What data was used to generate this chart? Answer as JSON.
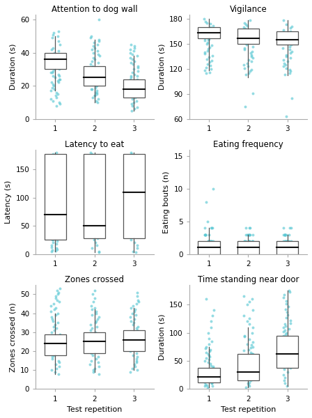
{
  "panels": [
    {
      "title": "Attention to dog wall",
      "ylabel": "Duration (s)",
      "ylim": [
        0,
        63
      ],
      "yticks": [
        0,
        20,
        40,
        60
      ],
      "boxes": [
        {
          "median": 36,
          "q1": 30,
          "q3": 40,
          "whislo": 17,
          "whishi": 50
        },
        {
          "median": 25,
          "q1": 20,
          "q3": 32,
          "whislo": 10,
          "whishi": 48
        },
        {
          "median": 18,
          "q1": 13,
          "q3": 24,
          "whislo": 5,
          "whishi": 38
        }
      ],
      "jitter_y": [
        [
          36,
          38,
          40,
          35,
          33,
          37,
          39,
          41,
          34,
          32,
          30,
          29,
          28,
          42,
          43,
          45,
          47,
          49,
          27,
          26,
          25,
          24,
          22,
          20,
          19,
          18,
          17,
          21,
          23,
          38,
          36,
          34,
          32,
          30,
          28,
          26,
          24,
          22,
          10,
          8,
          15,
          16,
          13,
          12,
          11,
          14,
          50,
          51,
          52,
          53,
          9
        ],
        [
          25,
          27,
          29,
          23,
          21,
          30,
          32,
          34,
          20,
          18,
          16,
          40,
          42,
          45,
          48,
          35,
          33,
          31,
          15,
          13,
          11,
          22,
          24,
          26,
          28,
          38,
          36,
          19,
          17,
          14,
          12,
          10,
          46,
          44,
          60,
          37,
          39,
          41,
          43,
          47,
          49,
          50,
          28,
          26,
          24,
          22,
          20,
          18,
          16,
          14
        ],
        [
          18,
          20,
          22,
          16,
          14,
          24,
          26,
          28,
          12,
          10,
          30,
          32,
          34,
          36,
          38,
          8,
          6,
          5,
          40,
          42,
          44,
          15,
          13,
          11,
          9,
          25,
          27,
          29,
          23,
          21,
          19,
          17,
          7,
          45,
          43,
          41,
          39,
          37,
          35,
          33,
          31,
          26,
          24,
          22,
          20
        ]
      ]
    },
    {
      "title": "Vigilance",
      "ylabel": "Duration (s)",
      "ylim": [
        60,
        185
      ],
      "yticks": [
        60,
        90,
        120,
        150,
        180
      ],
      "boxes": [
        {
          "median": 163,
          "q1": 157,
          "q3": 170,
          "whislo": 118,
          "whishi": 180
        },
        {
          "median": 157,
          "q1": 150,
          "q3": 168,
          "whislo": 110,
          "whishi": 178
        },
        {
          "median": 155,
          "q1": 149,
          "q3": 165,
          "whislo": 112,
          "whishi": 178
        }
      ],
      "jitter_y": [
        [
          163,
          165,
          167,
          160,
          158,
          170,
          172,
          174,
          156,
          154,
          152,
          175,
          177,
          180,
          162,
          164,
          168,
          159,
          157,
          155,
          150,
          148,
          146,
          144,
          142,
          140,
          138,
          136,
          134,
          132,
          130,
          128,
          126,
          124,
          122,
          120,
          118,
          116,
          115
        ],
        [
          157,
          159,
          161,
          155,
          153,
          168,
          170,
          172,
          151,
          149,
          147,
          173,
          175,
          178,
          163,
          165,
          167,
          145,
          143,
          141,
          139,
          137,
          135,
          133,
          131,
          129,
          127,
          125,
          123,
          121,
          119,
          117,
          115,
          113,
          91,
          75
        ],
        [
          155,
          157,
          159,
          153,
          151,
          165,
          167,
          169,
          149,
          147,
          145,
          171,
          173,
          178,
          161,
          163,
          143,
          141,
          139,
          137,
          135,
          133,
          131,
          129,
          127,
          125,
          123,
          121,
          119,
          117,
          115,
          113,
          85,
          63
        ]
      ]
    },
    {
      "title": "Latency to eat",
      "ylabel": "Latency (s)",
      "ylim": [
        0,
        185
      ],
      "yticks": [
        0,
        50,
        100,
        150
      ],
      "boxes": [
        {
          "median": 70,
          "q1": 25,
          "q3": 178,
          "whislo": 5,
          "whishi": 180
        },
        {
          "median": 50,
          "q1": 28,
          "q3": 178,
          "whislo": 3,
          "whishi": 180
        },
        {
          "median": 110,
          "q1": 28,
          "q3": 178,
          "whislo": 3,
          "whishi": 180
        }
      ],
      "jitter_y": [
        [
          70,
          65,
          60,
          55,
          50,
          45,
          40,
          35,
          30,
          25,
          20,
          15,
          10,
          8,
          120,
          115,
          110,
          105,
          100,
          95,
          90,
          85,
          145,
          170,
          175,
          178,
          180,
          75,
          80,
          25,
          27,
          29,
          23,
          5,
          6,
          7,
          12,
          18,
          55,
          60,
          65,
          170,
          165,
          160,
          155,
          150
        ],
        [
          50,
          45,
          40,
          35,
          30,
          25,
          20,
          15,
          10,
          5,
          3,
          55,
          60,
          120,
          115,
          110,
          105,
          100,
          165,
          170,
          175,
          178,
          180,
          32,
          37,
          42,
          47,
          52,
          57,
          62,
          67,
          72,
          77,
          28,
          32,
          125,
          130,
          135,
          140,
          145,
          150,
          155,
          160
        ],
        [
          110,
          105,
          100,
          95,
          90,
          85,
          80,
          75,
          70,
          65,
          60,
          55,
          50,
          45,
          40,
          35,
          30,
          25,
          20,
          15,
          10,
          5,
          3,
          145,
          150,
          155,
          160,
          165,
          170,
          178,
          180,
          115,
          120,
          125,
          130,
          135,
          140
        ]
      ]
    },
    {
      "title": "Eating frequency",
      "ylabel": "Eating bouts (n)",
      "ylim": [
        0,
        16
      ],
      "yticks": [
        0,
        5,
        10,
        15
      ],
      "boxes": [
        {
          "median": 1,
          "q1": 0,
          "q3": 2,
          "whislo": 0,
          "whishi": 4
        },
        {
          "median": 1,
          "q1": 0,
          "q3": 2,
          "whislo": 0,
          "whishi": 3
        },
        {
          "median": 1,
          "q1": 0,
          "q3": 2,
          "whislo": 0,
          "whishi": 3
        }
      ],
      "jitter_y": [
        [
          0,
          0,
          0,
          0,
          0,
          0,
          0,
          0,
          0,
          0,
          1,
          1,
          1,
          1,
          1,
          1,
          1,
          1,
          1,
          2,
          2,
          2,
          2,
          2,
          3,
          3,
          3,
          4,
          4,
          4,
          8,
          10,
          0,
          0,
          0,
          1,
          2,
          3,
          4,
          5,
          0,
          1,
          2,
          3,
          0,
          1,
          2,
          3
        ],
        [
          0,
          0,
          0,
          0,
          0,
          0,
          0,
          0,
          0,
          1,
          1,
          1,
          1,
          1,
          1,
          1,
          2,
          2,
          2,
          2,
          3,
          3,
          3,
          3,
          0,
          0,
          1,
          2,
          3,
          4,
          0,
          1,
          2,
          3,
          4,
          0,
          1,
          2,
          3,
          4,
          0,
          1,
          2,
          3
        ],
        [
          0,
          0,
          0,
          0,
          0,
          0,
          0,
          0,
          0,
          1,
          1,
          1,
          1,
          1,
          1,
          1,
          2,
          2,
          2,
          2,
          3,
          3,
          3,
          3,
          0,
          0,
          1,
          2,
          3,
          4,
          0,
          1,
          2,
          3,
          4,
          0,
          1,
          2,
          3,
          4,
          0,
          1,
          2,
          3
        ]
      ]
    },
    {
      "title": "Zones crossed",
      "ylabel": "Zones crossed (n)",
      "ylim": [
        0,
        55
      ],
      "yticks": [
        0,
        10,
        20,
        30,
        40,
        50
      ],
      "boxes": [
        {
          "median": 24,
          "q1": 18,
          "q3": 29,
          "whislo": 8,
          "whishi": 40
        },
        {
          "median": 25,
          "q1": 19,
          "q3": 30,
          "whislo": 9,
          "whishi": 42
        },
        {
          "median": 26,
          "q1": 20,
          "q3": 31,
          "whislo": 10,
          "whishi": 43
        }
      ],
      "jitter_y": [
        [
          24,
          26,
          28,
          22,
          20,
          18,
          30,
          32,
          16,
          14,
          12,
          34,
          36,
          38,
          10,
          8,
          40,
          42,
          44,
          46,
          48,
          50,
          15,
          17,
          19,
          21,
          23,
          25,
          27,
          29,
          31,
          33,
          35,
          37,
          39,
          11,
          13,
          9,
          41,
          43,
          45,
          47,
          49,
          51,
          52,
          53
        ],
        [
          25,
          27,
          29,
          23,
          21,
          19,
          31,
          33,
          17,
          15,
          13,
          35,
          37,
          39,
          11,
          9,
          41,
          43,
          16,
          18,
          20,
          22,
          24,
          26,
          28,
          30,
          32,
          34,
          36,
          38,
          40,
          12,
          14,
          42,
          44,
          46,
          48,
          50,
          52,
          10,
          8
        ],
        [
          26,
          28,
          30,
          24,
          22,
          20,
          32,
          34,
          18,
          16,
          14,
          36,
          38,
          40,
          12,
          10,
          42,
          44,
          46,
          17,
          19,
          21,
          23,
          25,
          27,
          29,
          31,
          33,
          35,
          37,
          39,
          13,
          15,
          41,
          43,
          45,
          47,
          49,
          51,
          11,
          9
        ]
      ]
    },
    {
      "title": "Time standing near door",
      "ylabel": "Duration (s)",
      "ylim": [
        0,
        185
      ],
      "yticks": [
        0,
        50,
        100,
        150
      ],
      "boxes": [
        {
          "median": 22,
          "q1": 12,
          "q3": 38,
          "whislo": 3,
          "whishi": 75
        },
        {
          "median": 30,
          "q1": 15,
          "q3": 62,
          "whislo": 3,
          "whishi": 110
        },
        {
          "median": 62,
          "q1": 38,
          "q3": 95,
          "whislo": 5,
          "whishi": 175
        }
      ],
      "jitter_y": [
        [
          22,
          25,
          28,
          20,
          18,
          15,
          38,
          40,
          12,
          10,
          8,
          45,
          50,
          55,
          3,
          75,
          30,
          35,
          42,
          47,
          52,
          57,
          62,
          67,
          72,
          5,
          7,
          60,
          65,
          70,
          32,
          27,
          18,
          14,
          10,
          6,
          80,
          85,
          90,
          100,
          110,
          120,
          130,
          140,
          160
        ],
        [
          30,
          35,
          40,
          25,
          20,
          15,
          62,
          65,
          10,
          8,
          5,
          70,
          75,
          80,
          3,
          110,
          95,
          100,
          38,
          43,
          48,
          53,
          58,
          63,
          68,
          73,
          78,
          83,
          88,
          93,
          12,
          18,
          45,
          50,
          55,
          60,
          115,
          120,
          125,
          130,
          140,
          150,
          155,
          160,
          165
        ],
        [
          62,
          65,
          70,
          55,
          50,
          45,
          95,
          100,
          38,
          35,
          30,
          105,
          110,
          115,
          5,
          175,
          80,
          85,
          90,
          42,
          47,
          52,
          57,
          67,
          72,
          77,
          82,
          87,
          92,
          97,
          102,
          107,
          112,
          117,
          122,
          127,
          132,
          137,
          142,
          147,
          152,
          157,
          162,
          167,
          172,
          25,
          20,
          15,
          10,
          40
        ]
      ]
    }
  ],
  "dot_color": "#5BC8D4",
  "box_facecolor": "white",
  "box_edgecolor": "#555555",
  "median_color": "#111111",
  "xlabel": "Test repetition",
  "xticks": [
    1,
    2,
    3
  ],
  "dot_alpha": 0.65,
  "dot_size": 8,
  "box_width": 0.55,
  "jitter_spread": 0.12
}
